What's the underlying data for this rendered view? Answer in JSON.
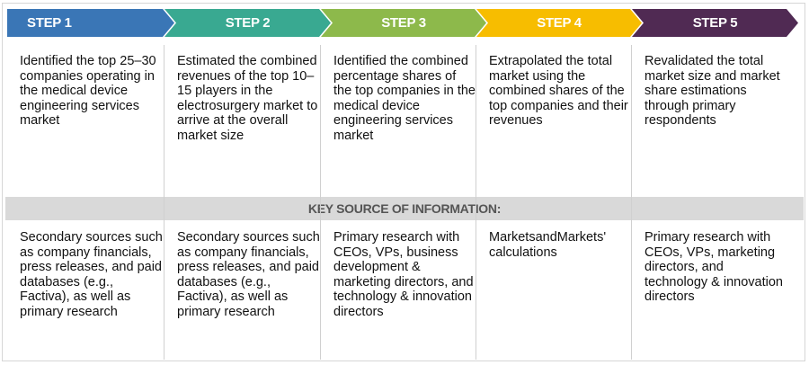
{
  "steps": [
    {
      "label": "STEP 1",
      "color": "#3a76b6",
      "description": "Identified the top 25–30 companies operating in the medical device engineering services market",
      "source": "Secondary sources such as company financials, press releases, and paid databases (e.g., Factiva), as well as primary research"
    },
    {
      "label": "STEP 2",
      "color": "#39a991",
      "description": "Estimated the combined revenues of the top 10–15 players in the electrosurgery market to arrive at the overall market size",
      "source": "Secondary sources such as company financials, press releases, and paid databases (e.g., Factiva), as well as primary research"
    },
    {
      "label": "STEP 3",
      "color": "#8db94b",
      "description": "Identified the combined percentage shares of the top companies in the medical device engineering services market",
      "source": "Primary research with CEOs, VPs, business development & marketing directors, and technology & innovation directors"
    },
    {
      "label": "STEP 4",
      "color": "#f7bd00",
      "description": "Extrapolated the total market using the combined shares of the top companies and their revenues",
      "source": "MarketsandMarkets' calculations"
    },
    {
      "label": "STEP 5",
      "color": "#502a53",
      "description": "Revalidated the total market size and market share estimations through primary respondents",
      "source": "Primary research with CEOs, VPs, marketing directors, and technology & innovation directors"
    }
  ],
  "key_source_label": "KEY SOURCE OF INFORMATION:"
}
